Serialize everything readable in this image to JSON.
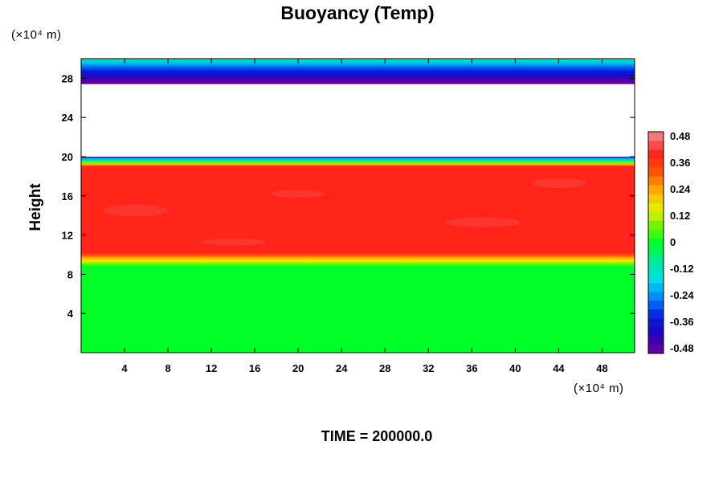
{
  "chart_data": {
    "type": "heatmap",
    "title": "Buoyancy (Temp)",
    "ylabel": "Height",
    "x_unit": "(×10⁴ m)",
    "y_unit": "(×10⁴ m)",
    "footer": "TIME = 200000.0",
    "xlim": [
      0,
      51
    ],
    "ylim": [
      0,
      30
    ],
    "x_ticks": [
      "4",
      "8",
      "12",
      "16",
      "20",
      "24",
      "28",
      "32",
      "36",
      "40",
      "44",
      "48"
    ],
    "y_ticks": [
      "4",
      "8",
      "12",
      "16",
      "20",
      "24",
      "28"
    ],
    "colorbar": {
      "min": -0.48,
      "max": 0.48,
      "labels": [
        "0.48",
        "0.36",
        "0.24",
        "0.12",
        "0",
        "-0.12",
        "-0.24",
        "-0.36",
        "-0.48"
      ],
      "levels": 25
    },
    "layers": [
      {
        "height_range": [
          0,
          9
        ],
        "value": 0.0
      },
      {
        "height_range": [
          9,
          10
        ],
        "value": 0.2
      },
      {
        "height_range": [
          10,
          19.2
        ],
        "value": 0.38
      },
      {
        "height_range": [
          19.2,
          20
        ],
        "value": -0.2
      },
      {
        "height_range": [
          20,
          27.5
        ],
        "value": null
      },
      {
        "height_range": [
          27.5,
          30
        ],
        "value": -0.4
      }
    ]
  }
}
